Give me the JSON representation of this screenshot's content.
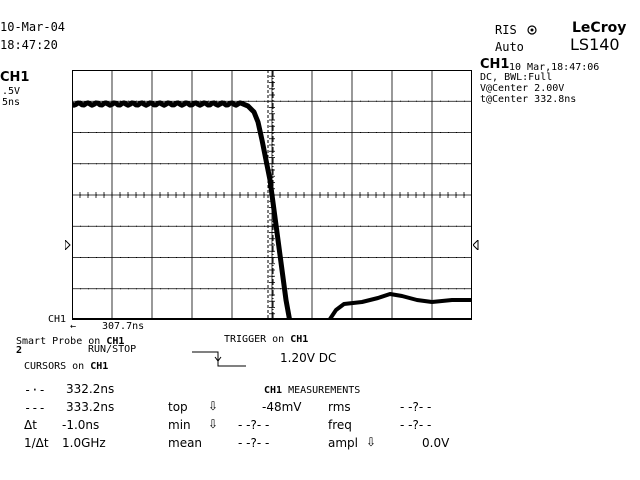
{
  "header": {
    "date": "10-Mar-04",
    "time": "18:47:20",
    "mode_label": "RIS",
    "mode_icon": "target-icon",
    "trigger_mode": "Auto",
    "brand": "LeCroy",
    "model": "LS140"
  },
  "channel_info": {
    "name": "CH1",
    "volts_per_div": ".5V",
    "time_per_div": "5ns",
    "ground_marker": "CH1"
  },
  "side_panel": {
    "channel": "CH1",
    "timestamp": "10 Mar,18:47:06",
    "coupling": "DC, BWL:Full",
    "v_center": "V@Center 2.00V",
    "t_center": "t@Center 332.8ns"
  },
  "waveform": {
    "cursor_readout": "307.7ns",
    "color": "#000000"
  },
  "trigger": {
    "smart_probe_prefix": "Smart Probe on ",
    "smart_probe_channel": "CH1",
    "index": "2",
    "run_stop": "RUN/STOP",
    "title_prefix": "TRIGGER on ",
    "title_channel": "CH1",
    "level": "1.20V DC"
  },
  "cursors": {
    "title_prefix": "CURSORS on ",
    "title_channel": "CH1",
    "rows": [
      {
        "symbol": "-·-",
        "value": "332.2ns"
      },
      {
        "symbol": "---",
        "value": "333.2ns"
      },
      {
        "symbol": "Δt",
        "value": "-1.0ns"
      },
      {
        "symbol": "1/Δt",
        "value": "1.0GHz"
      }
    ]
  },
  "measurements": {
    "title_channel": "CH1",
    "title_suffix": " MEASUREMENTS",
    "col1": [
      {
        "label": "top",
        "arrow": "⇩",
        "value": "-48mV"
      },
      {
        "label": "min",
        "arrow": "⇩",
        "value": "- -?- -"
      },
      {
        "label": "mean",
        "arrow": "",
        "value": "- -?- -"
      }
    ],
    "col2": [
      {
        "label": "rms",
        "arrow": "",
        "value": "- -?- -"
      },
      {
        "label": "freq",
        "arrow": "",
        "value": "- -?- -"
      },
      {
        "label": "ampl",
        "arrow": "⇩",
        "value": "0.0V"
      }
    ]
  }
}
